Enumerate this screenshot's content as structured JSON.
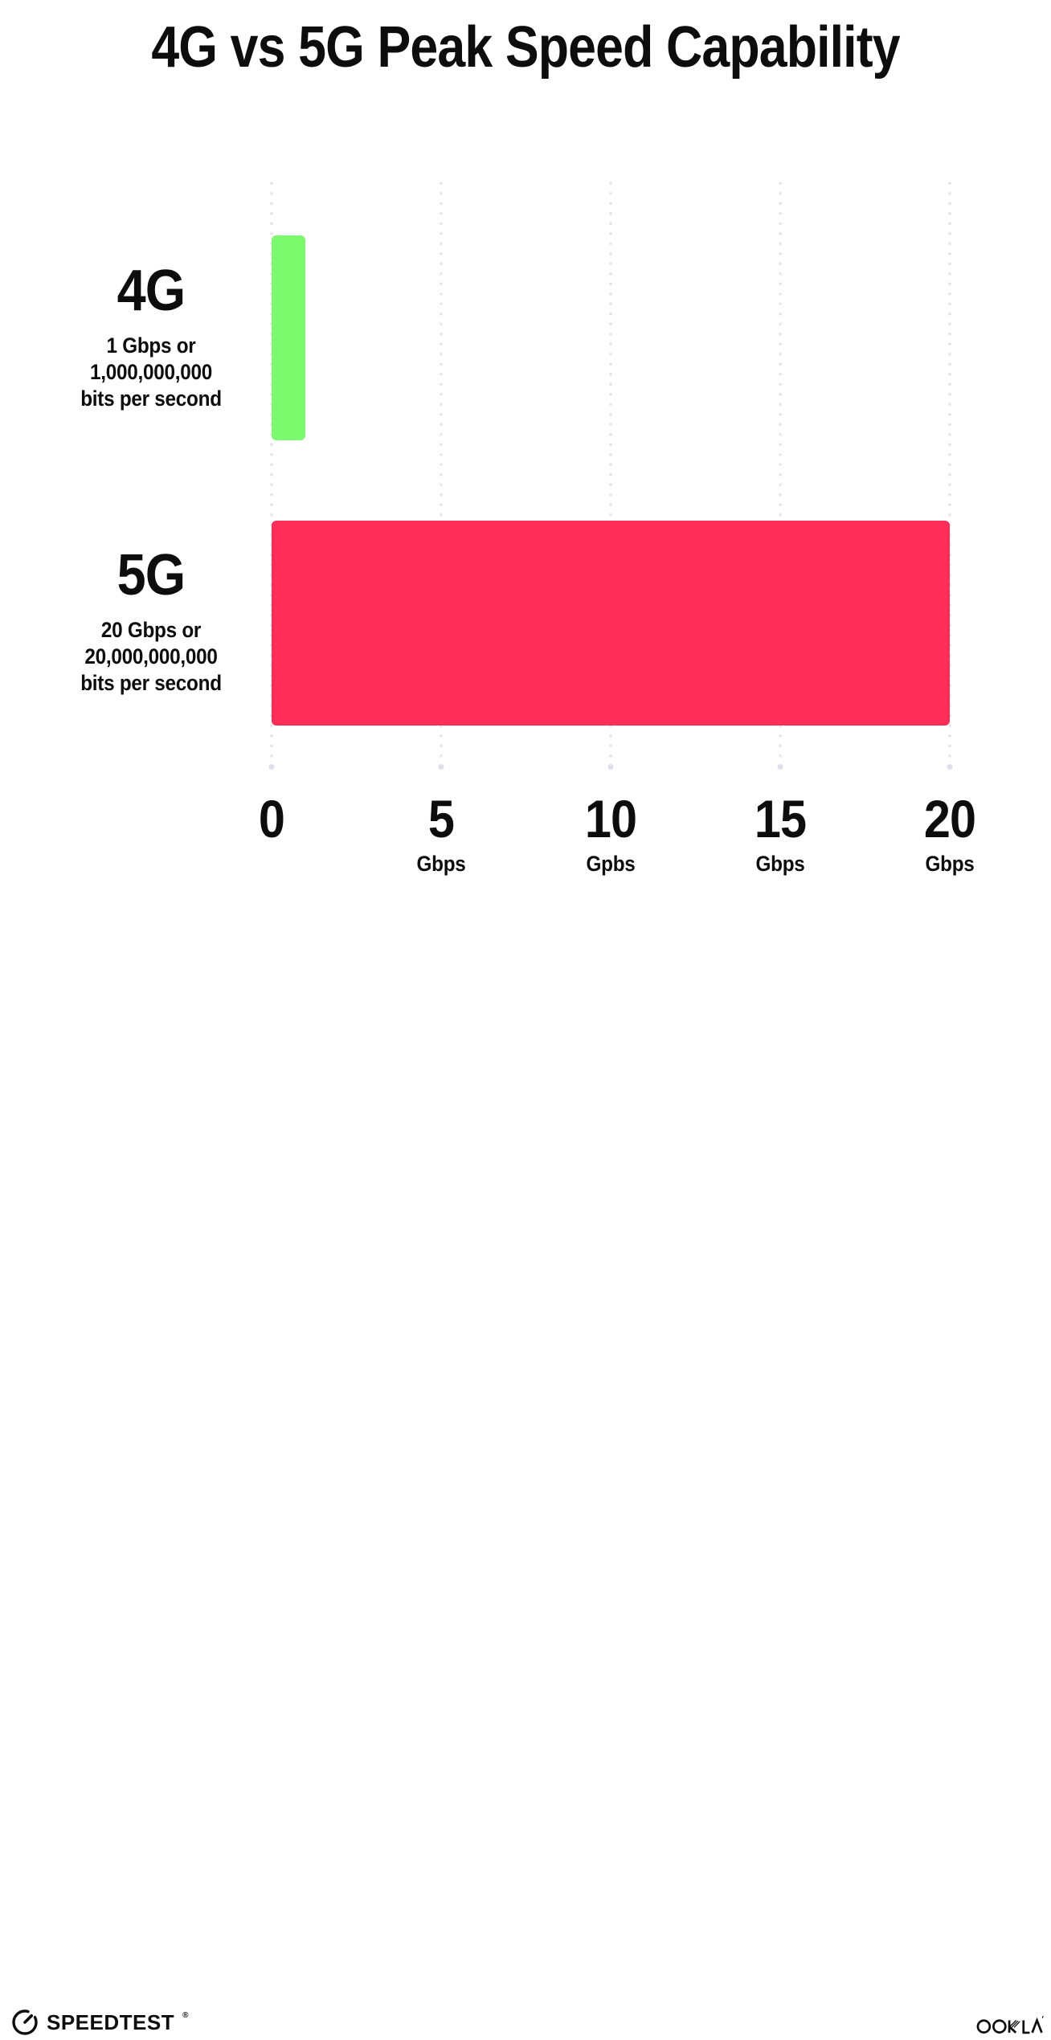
{
  "title": "4G vs 5G Peak Speed Capability",
  "colors": {
    "bar_4g_green": "#7cfa6d",
    "bar_5g_pink": "#ff2e58",
    "gridline_dot": "#e2e4ee",
    "text": "#0d0d0d",
    "background": "#ffffff"
  },
  "chart_data": {
    "type": "bar",
    "orientation": "horizontal",
    "title": "4G vs 5G Peak Speed Capability",
    "categories": [
      "4G",
      "5G"
    ],
    "values": [
      1,
      20
    ],
    "value_unit": "Gbps",
    "xlim": [
      0,
      20
    ],
    "grid": "dotted-vertical",
    "legend": "none",
    "bars": [
      {
        "label": "4G",
        "value": 1,
        "color": "#7cfa6d",
        "sublabel_lines": [
          "1 Gbps or",
          "1,000,000,000",
          "bits per second"
        ]
      },
      {
        "label": "5G",
        "value": 20,
        "color": "#ff2e58",
        "sublabel_lines": [
          "20 Gbps or",
          "20,000,000,000",
          "bits per second"
        ]
      }
    ],
    "x_ticks": [
      {
        "value": "0",
        "unit": ""
      },
      {
        "value": "5",
        "unit": "Gbps"
      },
      {
        "value": "10",
        "unit": "Gpbs"
      },
      {
        "value": "15",
        "unit": "Gbps"
      },
      {
        "value": "20",
        "unit": "Gbps"
      }
    ]
  },
  "footer": {
    "speedtest_label": "SPEEDTEST",
    "speedtest_trademark": "®",
    "ookla_label": "OOKLA"
  }
}
